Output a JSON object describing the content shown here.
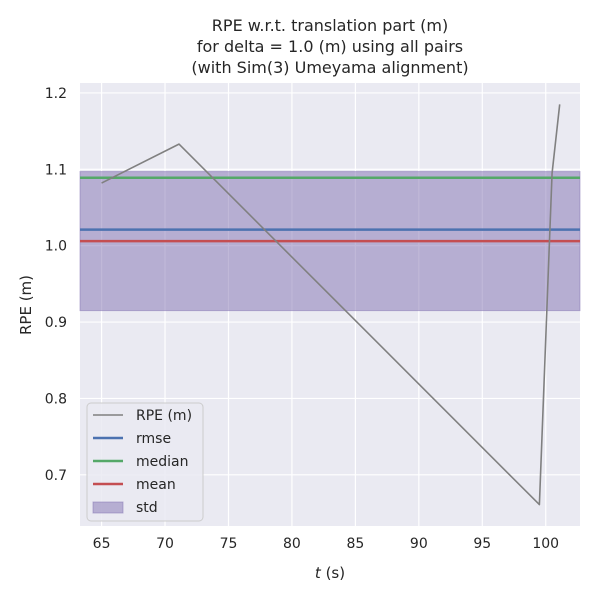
{
  "chart_data": {
    "type": "line",
    "title_lines": [
      "RPE w.r.t. translation part (m)",
      "for delta = 1.0 (m) using all pairs",
      "(with Sim(3) Umeyama alignment)"
    ],
    "xlabel_italic": "t",
    "xlabel_rest": " (s)",
    "ylabel": "RPE (m)",
    "xlim": [
      63.3,
      102.7
    ],
    "ylim": [
      0.633,
      1.213
    ],
    "xticks": [
      65,
      70,
      75,
      80,
      85,
      90,
      95,
      100
    ],
    "yticks": [
      0.7,
      0.8,
      0.9,
      1.0,
      1.1,
      1.2
    ],
    "ytick_labels": [
      "0.7",
      "0.8",
      "0.9",
      "1.0",
      "1.1",
      "1.2"
    ],
    "grid": true,
    "legend_position": "lower-left",
    "series": [
      {
        "name": "RPE (m)",
        "color": "#808080",
        "x": [
          65.0,
          71.1,
          99.5,
          100.5,
          101.1
        ],
        "y": [
          1.082,
          1.133,
          0.661,
          1.095,
          1.185
        ]
      }
    ],
    "stats": {
      "rmse": {
        "label": "rmse",
        "value": 1.021,
        "color": "#4c72b0"
      },
      "median": {
        "label": "median",
        "value": 1.089,
        "color": "#55a868"
      },
      "mean": {
        "label": "mean",
        "value": 1.006,
        "color": "#c44e52"
      },
      "std": {
        "label": "std",
        "lower": 0.915,
        "upper": 1.097,
        "color": "#8172b2"
      }
    }
  }
}
